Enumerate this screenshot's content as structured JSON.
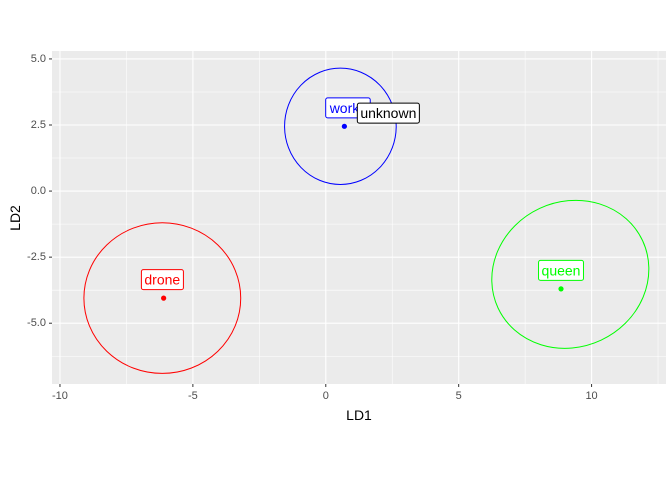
{
  "chart_data": {
    "type": "scatter",
    "xlabel": "LD1",
    "ylabel": "LD2",
    "xlim": [
      -10.3,
      12.8
    ],
    "ylim": [
      -7.3,
      5.3
    ],
    "x_ticks": [
      -10,
      -5,
      0,
      5,
      10
    ],
    "x_tick_labels": [
      "-10",
      "-5",
      "0",
      "5",
      "10"
    ],
    "y_ticks": [
      5.0,
      2.5,
      0.0,
      -2.5,
      -5.0
    ],
    "y_tick_labels": [
      "5.0",
      "2.5",
      "0.0",
      "-2.5",
      "-5.0"
    ],
    "grid": true,
    "points": [
      {
        "label": "worker",
        "x": 0.7,
        "y": 2.45,
        "color": "#0000ff"
      },
      {
        "label": "drone",
        "x": -6.1,
        "y": -4.05,
        "color": "#ff0000"
      },
      {
        "label": "queen",
        "x": 8.85,
        "y": -3.7,
        "color": "#00ff00"
      },
      {
        "label": "unknown",
        "x": 1.0,
        "y": 3.0,
        "color": "#000000"
      }
    ],
    "ellipses": [
      {
        "group": "worker",
        "cx": 0.55,
        "cy": 2.45,
        "rx": 2.1,
        "ry": 2.2,
        "angle": 0,
        "color": "#0000ff"
      },
      {
        "group": "drone",
        "cx": -6.15,
        "cy": -4.05,
        "rx": 2.95,
        "ry": 2.85,
        "angle": 0,
        "color": "#ff0000"
      },
      {
        "group": "queen",
        "cx": 9.2,
        "cy": -3.15,
        "rx": 3.0,
        "ry": 2.75,
        "angle": -25,
        "color": "#00ff00"
      }
    ],
    "labels": [
      {
        "text": "worke",
        "x": 0.85,
        "y": 3.1,
        "color": "#0000ff",
        "anchor": "middle"
      },
      {
        "text": "unknown",
        "x": 1.3,
        "y": 2.9,
        "color": "#000000",
        "anchor": "start"
      },
      {
        "text": "drone",
        "x": -6.15,
        "y": -3.4,
        "color": "#ff0000",
        "anchor": "middle"
      },
      {
        "text": "queen",
        "x": 8.85,
        "y": -3.05,
        "color": "#00ff00",
        "anchor": "middle"
      }
    ],
    "panel_bg": "#ebebeb",
    "grid_color": "#ffffff"
  }
}
